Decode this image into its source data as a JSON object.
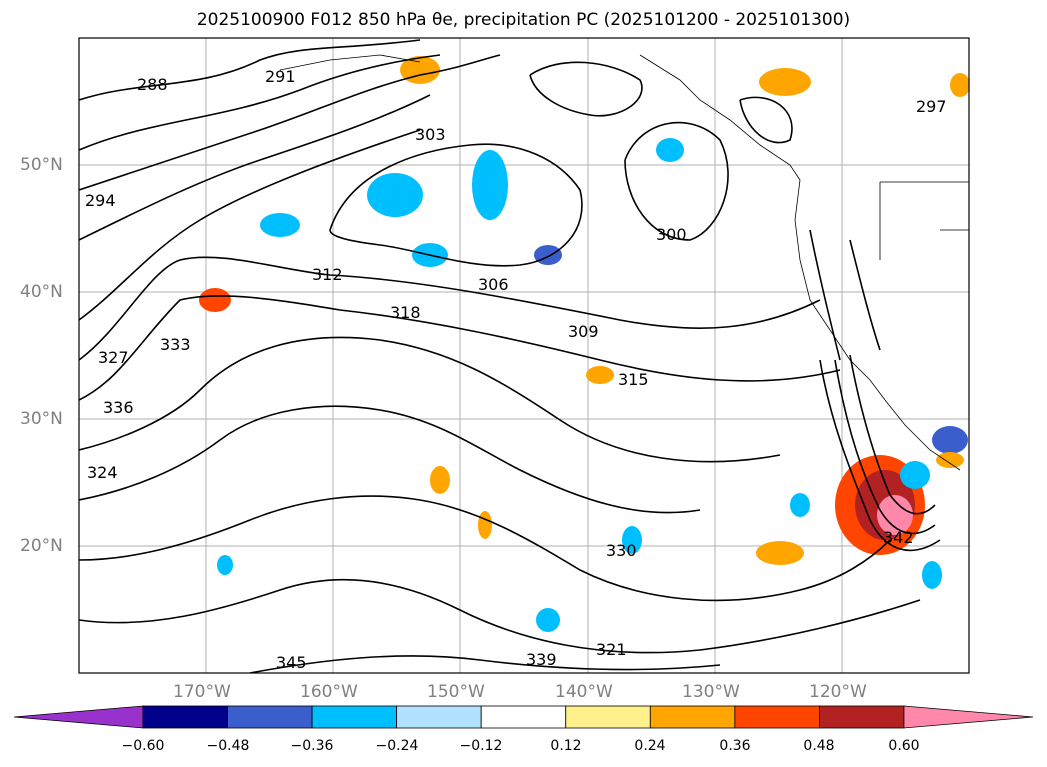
{
  "title": "2025100900 F012 850 hPa θe, precipitation PC (2025101200 - 2025101300)",
  "lat_labels": [
    "50°N",
    "40°N",
    "30°N",
    "20°N"
  ],
  "lon_labels": [
    "170°W",
    "160°W",
    "150°W",
    "140°W",
    "130°W",
    "120°W"
  ],
  "contour_labels": [
    "288",
    "291",
    "294",
    "297",
    "300",
    "303",
    "306",
    "309",
    "312",
    "315",
    "318",
    "321",
    "324",
    "327",
    "330",
    "333",
    "336",
    "339",
    "342",
    "345"
  ],
  "colorbar": {
    "ticks": [
      "−0.60",
      "−0.48",
      "−0.36",
      "−0.24",
      "−0.12",
      "0.12",
      "0.24",
      "0.36",
      "0.48",
      "0.60"
    ],
    "colors": [
      "#9932cc",
      "#00008b",
      "#3a5fcd",
      "#00bfff",
      "#b0e2ff",
      "#ffffff",
      "#fff08c",
      "#ffa500",
      "#ff4500",
      "#b22222",
      "#ff88aa"
    ]
  }
}
